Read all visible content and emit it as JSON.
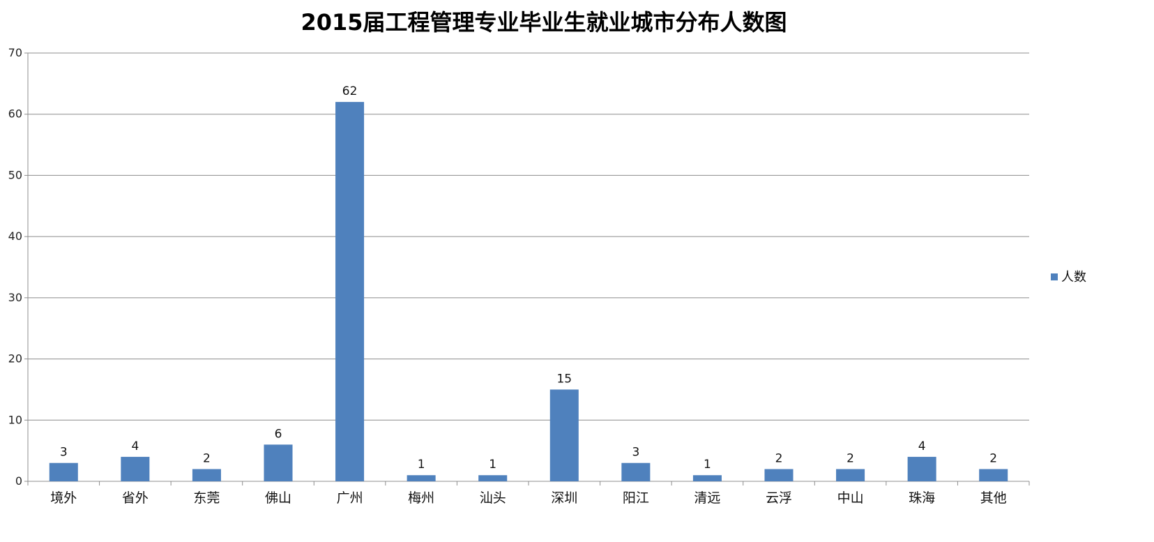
{
  "chart_data": {
    "type": "bar",
    "title": "2015届工程管理专业毕业生就业城市分布人数图",
    "xlabel": "",
    "ylabel": "",
    "categories": [
      "境外",
      "省外",
      "东莞",
      "佛山",
      "广州",
      "梅州",
      "汕头",
      "深圳",
      "阳江",
      "清远",
      "云浮",
      "中山",
      "珠海",
      "其他"
    ],
    "series": [
      {
        "name": "人数",
        "values": [
          3,
          4,
          2,
          6,
          62,
          1,
          1,
          15,
          3,
          1,
          2,
          2,
          4,
          2
        ],
        "color": "#4f81bd"
      }
    ],
    "ylim": [
      0,
      70
    ],
    "yticks": [
      0,
      10,
      20,
      30,
      40,
      50,
      60,
      70
    ],
    "grid": true,
    "legend": "right",
    "data_labels": true
  }
}
